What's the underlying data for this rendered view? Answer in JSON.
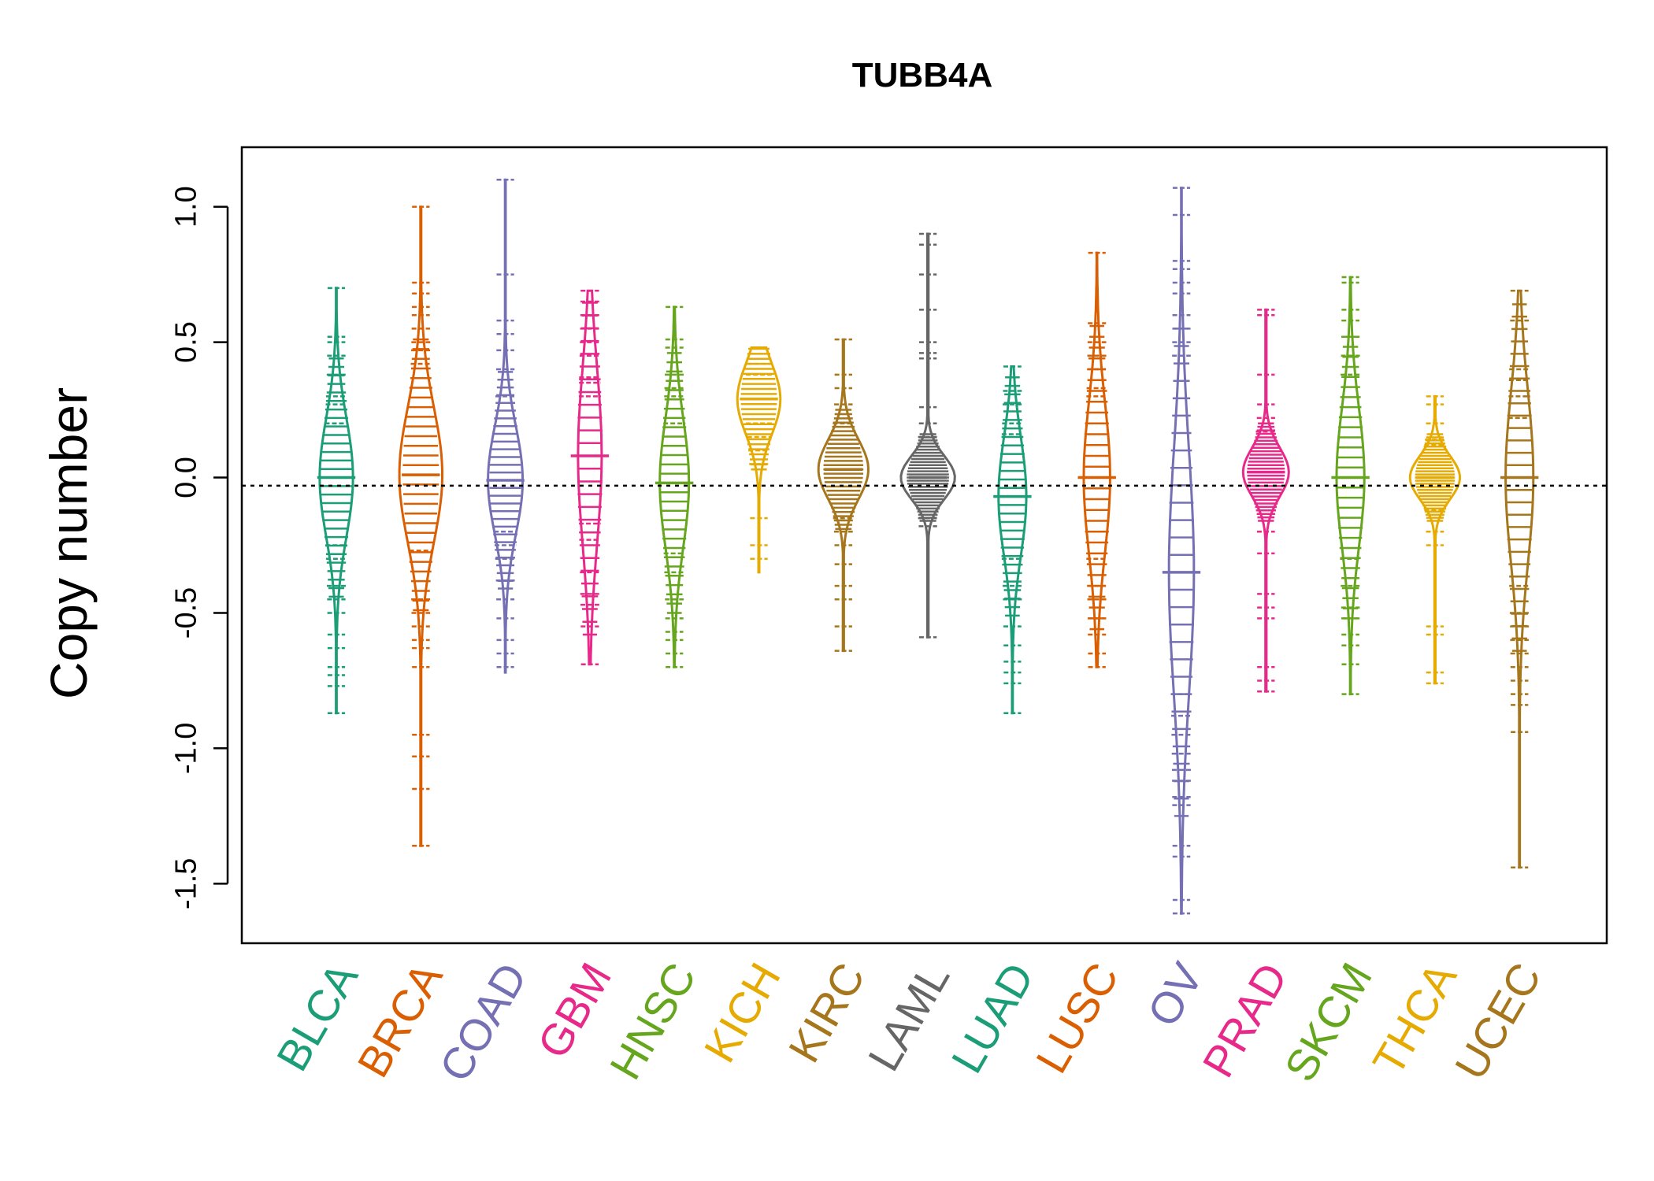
{
  "chart_data": {
    "type": "beanplot",
    "title": "TUBB4A",
    "ylabel": "Copy number",
    "xlabel": "",
    "ylim": [
      -1.72,
      1.22
    ],
    "yticks": [
      -1.5,
      -1.0,
      -0.5,
      0.0,
      0.5,
      1.0
    ],
    "ytick_labels": [
      "-1.5",
      "-1.0",
      "-0.5",
      "0.0",
      "0.5",
      "1.0"
    ],
    "reference_line": -0.03,
    "categories": [
      "BLCA",
      "BRCA",
      "COAD",
      "GBM",
      "HNSC",
      "KICH",
      "KIRC",
      "LAML",
      "LUAD",
      "LUSC",
      "OV",
      "PRAD",
      "SKCM",
      "THCA",
      "UCEC"
    ],
    "series": [
      {
        "category": "BLCA",
        "color": "#1B9E77",
        "min": -0.87,
        "max": 0.7,
        "mode": 0.0,
        "spread": 0.22,
        "peak_width": 0.48,
        "outliers": [
          0.7,
          0.52,
          0.5,
          0.45,
          0.38,
          0.3,
          0.27,
          0.2,
          -0.25,
          -0.3,
          -0.4,
          -0.45,
          -0.5,
          -0.58,
          -0.63,
          -0.7,
          -0.73,
          -0.77,
          -0.87
        ]
      },
      {
        "category": "BRCA",
        "color": "#D95F02",
        "min": -1.36,
        "max": 1.0,
        "mode": 0.01,
        "spread": 0.25,
        "peak_width": 0.62,
        "outliers": [
          1.0,
          0.72,
          0.68,
          0.63,
          0.6,
          0.55,
          0.5,
          0.47,
          0.42,
          -0.27,
          -0.45,
          -0.5,
          -0.55,
          -0.6,
          -0.63,
          -0.7,
          -0.95,
          -1.03,
          -1.15,
          -1.36
        ]
      },
      {
        "category": "COAD",
        "color": "#7570B3",
        "min": -0.72,
        "max": 1.1,
        "mode": -0.01,
        "spread": 0.2,
        "peak_width": 0.5,
        "outliers": [
          1.1,
          0.75,
          0.58,
          0.53,
          0.47,
          0.4,
          0.3,
          -0.2,
          -0.25,
          -0.3,
          -0.38,
          -0.45,
          -0.52,
          -0.6,
          -0.65,
          -0.7
        ]
      },
      {
        "category": "GBM",
        "color": "#E7298A",
        "min": -0.69,
        "max": 0.69,
        "mode": 0.08,
        "spread": 0.33,
        "peak_width": 0.34,
        "outliers": [
          0.69,
          0.65,
          0.6,
          0.55,
          0.5,
          0.45,
          0.37,
          0.35,
          0.3,
          -0.17,
          -0.23,
          -0.35,
          -0.43,
          -0.47,
          -0.55,
          -0.69
        ]
      },
      {
        "category": "HNSC",
        "color": "#66A61E",
        "min": -0.7,
        "max": 0.63,
        "mode": -0.02,
        "spread": 0.24,
        "peak_width": 0.42,
        "outliers": [
          0.63,
          0.51,
          0.48,
          0.38,
          0.33,
          0.3,
          0.2,
          -0.28,
          -0.35,
          -0.45,
          -0.52,
          -0.57,
          -0.6,
          -0.65,
          -0.7
        ]
      },
      {
        "category": "KICH",
        "color": "#E6AB02",
        "min": -0.35,
        "max": 0.48,
        "mode": 0.29,
        "spread": 0.13,
        "peak_width": 0.62,
        "outliers": [
          0.42,
          0.38,
          0.2,
          0.15,
          0.1,
          0.05,
          -0.15,
          -0.25,
          -0.3
        ]
      },
      {
        "category": "KIRC",
        "color": "#A6761D",
        "min": -0.64,
        "max": 0.51,
        "mode": 0.03,
        "spread": 0.11,
        "peak_width": 0.72,
        "outliers": [
          0.51,
          0.38,
          0.33,
          0.27,
          0.2,
          -0.15,
          -0.2,
          -0.25,
          -0.32,
          -0.4,
          -0.45,
          -0.55,
          -0.64
        ]
      },
      {
        "category": "LAML",
        "color": "#666666",
        "min": -0.59,
        "max": 0.9,
        "mode": 0.0,
        "spread": 0.08,
        "peak_width": 0.78,
        "outliers": [
          0.9,
          0.86,
          0.75,
          0.62,
          0.5,
          0.46,
          0.44,
          0.26,
          0.2,
          0.15,
          -0.15,
          -0.18,
          -0.59
        ]
      },
      {
        "category": "LUAD",
        "color": "#1B9E77",
        "min": -0.87,
        "max": 0.41,
        "mode": -0.07,
        "spread": 0.22,
        "peak_width": 0.4,
        "outliers": [
          0.41,
          0.32,
          0.27,
          0.2,
          0.16,
          -0.3,
          -0.4,
          -0.45,
          -0.55,
          -0.62,
          -0.68,
          -0.72,
          -0.76,
          -0.87
        ]
      },
      {
        "category": "LUSC",
        "color": "#D95F02",
        "min": -0.7,
        "max": 0.83,
        "mode": 0.0,
        "spread": 0.28,
        "peak_width": 0.38,
        "outliers": [
          0.83,
          0.57,
          0.5,
          0.45,
          0.4,
          0.33,
          0.3,
          -0.3,
          -0.4,
          -0.45,
          -0.52,
          -0.58,
          -0.65,
          -0.7
        ]
      },
      {
        "category": "OV",
        "color": "#7570B3",
        "min": -1.61,
        "max": 1.07,
        "mode": -0.35,
        "spread": 0.45,
        "peak_width": 0.36,
        "outliers": [
          1.07,
          0.97,
          0.8,
          0.77,
          0.72,
          0.68,
          0.6,
          0.55,
          0.5,
          0.45,
          -0.8,
          -0.88,
          -0.95,
          -1.02,
          -1.08,
          -1.12,
          -1.18,
          -1.21,
          -1.36,
          -1.4,
          -1.56,
          -1.61
        ]
      },
      {
        "category": "PRAD",
        "color": "#E7298A",
        "min": -0.79,
        "max": 0.62,
        "mode": 0.02,
        "spread": 0.09,
        "peak_width": 0.66,
        "outliers": [
          0.62,
          0.6,
          0.38,
          0.27,
          0.22,
          0.17,
          -0.2,
          -0.28,
          -0.43,
          -0.48,
          -0.52,
          -0.7,
          -0.75,
          -0.79
        ]
      },
      {
        "category": "SKCM",
        "color": "#66A61E",
        "min": -0.8,
        "max": 0.74,
        "mode": 0.0,
        "spread": 0.26,
        "peak_width": 0.4,
        "outliers": [
          0.74,
          0.72,
          0.62,
          0.58,
          0.52,
          0.45,
          0.38,
          -0.3,
          -0.4,
          -0.48,
          -0.52,
          -0.58,
          -0.62,
          -0.69,
          -0.8
        ]
      },
      {
        "category": "THCA",
        "color": "#E6AB02",
        "min": -0.76,
        "max": 0.3,
        "mode": 0.0,
        "spread": 0.08,
        "peak_width": 0.72,
        "outliers": [
          0.3,
          0.27,
          0.2,
          0.14,
          0.12,
          -0.12,
          -0.2,
          -0.25,
          -0.55,
          -0.58,
          -0.72,
          -0.76
        ]
      },
      {
        "category": "UCEC",
        "color": "#A6761D",
        "min": -1.44,
        "max": 0.69,
        "mode": 0.0,
        "spread": 0.32,
        "peak_width": 0.4,
        "outliers": [
          0.69,
          0.58,
          0.4,
          0.36,
          0.3,
          0.22,
          -0.4,
          -0.5,
          -0.55,
          -0.6,
          -0.65,
          -0.7,
          -0.75,
          -0.8,
          -0.84,
          -0.94,
          -1.44
        ]
      }
    ]
  }
}
